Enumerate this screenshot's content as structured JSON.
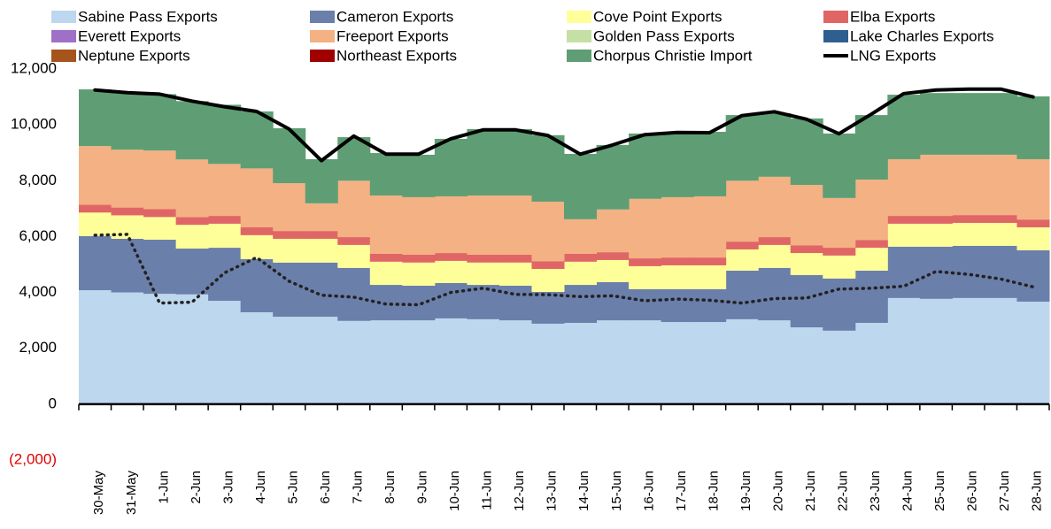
{
  "chart_data": {
    "type": "area",
    "stacked": true,
    "categories": [
      "30-May",
      "31-May",
      "1-Jun",
      "2-Jun",
      "3-Jun",
      "4-Jun",
      "5-Jun",
      "6-Jun",
      "7-Jun",
      "8-Jun",
      "9-Jun",
      "10-Jun",
      "11-Jun",
      "12-Jun",
      "13-Jun",
      "14-Jun",
      "15-Jun",
      "16-Jun",
      "17-Jun",
      "18-Jun",
      "19-Jun",
      "20-Jun",
      "21-Jun",
      "22-Jun",
      "23-Jun",
      "24-Jun",
      "25-Jun",
      "26-Jun",
      "27-Jun",
      "28-Jun"
    ],
    "ylim": [
      -2000,
      12000
    ],
    "yticks": [
      {
        "value": -2000,
        "label": "(2,000)"
      },
      0,
      {
        "value": 2000,
        "label": "2,000"
      },
      {
        "value": 4000,
        "label": "4,000"
      },
      {
        "value": 6000,
        "label": "6,000"
      },
      {
        "value": 8000,
        "label": "8,000"
      },
      {
        "value": 10000,
        "label": "10,000"
      },
      {
        "value": 12000,
        "label": "12,000"
      }
    ],
    "negative_label_color": "#e00000",
    "grid": false,
    "legend": "top",
    "series": [
      {
        "name": "Sabine Pass Exports",
        "color": "#bdd7ee",
        "values": [
          4080,
          4000,
          3950,
          3930,
          3700,
          3290,
          3130,
          3130,
          2980,
          3000,
          3000,
          3070,
          3040,
          3000,
          2880,
          2910,
          3000,
          3000,
          2940,
          2940,
          3040,
          3000,
          2750,
          2630,
          2910,
          3800,
          3770,
          3800,
          3800,
          3670
        ]
      },
      {
        "name": "Cameron Exports",
        "color": "#6b7fab",
        "values": [
          1940,
          1920,
          1940,
          1640,
          1900,
          1900,
          1940,
          1940,
          1900,
          1270,
          1240,
          1270,
          1230,
          1240,
          1140,
          1360,
          1370,
          1120,
          1180,
          1180,
          1740,
          1880,
          1870,
          1870,
          1870,
          1840,
          1870,
          1870,
          1870,
          1840
        ]
      },
      {
        "name": "Cove Point Exports",
        "color": "#ffff99",
        "values": [
          840,
          840,
          810,
          850,
          860,
          860,
          850,
          850,
          820,
          830,
          830,
          790,
          800,
          830,
          820,
          830,
          790,
          820,
          850,
          850,
          760,
          820,
          790,
          820,
          820,
          820,
          820,
          820,
          820,
          820
        ]
      },
      {
        "name": "Elba Exports",
        "color": "#e06666",
        "values": [
          280,
          280,
          280,
          280,
          280,
          280,
          280,
          280,
          280,
          280,
          280,
          280,
          280,
          280,
          280,
          280,
          280,
          280,
          280,
          280,
          280,
          280,
          280,
          280,
          280,
          280,
          280,
          280,
          280,
          280
        ]
      },
      {
        "name": "Everett Exports",
        "color": "#9e70c8",
        "values": [
          0,
          0,
          0,
          0,
          0,
          0,
          0,
          0,
          0,
          0,
          0,
          0,
          0,
          0,
          0,
          0,
          0,
          0,
          0,
          0,
          0,
          0,
          0,
          0,
          0,
          0,
          0,
          0,
          0,
          0
        ]
      },
      {
        "name": "Freeport Exports",
        "color": "#f4b183",
        "values": [
          2100,
          2070,
          2100,
          2060,
          1860,
          2110,
          1710,
          990,
          2020,
          2090,
          2060,
          2030,
          2120,
          2120,
          2130,
          1240,
          1530,
          2130,
          2160,
          2190,
          2180,
          2160,
          2160,
          1780,
          2160,
          2030,
          2190,
          2160,
          2160,
          2160
        ]
      },
      {
        "name": "Golden Pass Exports",
        "color": "#c5e0a5",
        "values": [
          0,
          0,
          0,
          0,
          0,
          0,
          0,
          0,
          0,
          0,
          0,
          0,
          0,
          0,
          0,
          0,
          0,
          0,
          0,
          0,
          0,
          0,
          0,
          0,
          0,
          0,
          0,
          0,
          0,
          0
        ]
      },
      {
        "name": "Lake Charles Exports",
        "color": "#2e5f8f",
        "values": [
          0,
          0,
          0,
          0,
          0,
          0,
          0,
          0,
          0,
          0,
          0,
          0,
          0,
          0,
          0,
          0,
          0,
          0,
          0,
          0,
          0,
          0,
          0,
          0,
          0,
          0,
          0,
          0,
          0,
          0
        ]
      },
      {
        "name": "Neptune Exports",
        "color": "#a5541b",
        "values": [
          0,
          0,
          0,
          0,
          0,
          0,
          0,
          0,
          0,
          0,
          0,
          0,
          0,
          0,
          0,
          0,
          0,
          0,
          0,
          0,
          0,
          0,
          0,
          0,
          0,
          0,
          0,
          0,
          0,
          0
        ]
      },
      {
        "name": "Northeast Exports",
        "color": "#a00000",
        "values": [
          0,
          0,
          0,
          0,
          0,
          0,
          0,
          0,
          0,
          0,
          0,
          0,
          0,
          0,
          0,
          0,
          0,
          0,
          0,
          0,
          0,
          0,
          0,
          0,
          0,
          0,
          0,
          0,
          0,
          0
        ]
      },
      {
        "name": "Chorpus Christie Import",
        "color": "#5f9e74",
        "values": [
          2030,
          2060,
          2020,
          2090,
          2120,
          2040,
          1970,
          1580,
          1560,
          1520,
          1520,
          2060,
          2380,
          2380,
          2380,
          2340,
          2310,
          2340,
          2340,
          2310,
          2350,
          2280,
          2380,
          2310,
          2310,
          2310,
          2210,
          2210,
          2210,
          2250
        ]
      },
      {
        "name": "LNG Exports",
        "type": "line",
        "color": "#000000",
        "values": [
          11250,
          11150,
          11100,
          10850,
          10650,
          10480,
          9850,
          8720,
          9600,
          8950,
          8950,
          9500,
          9820,
          9820,
          9620,
          8950,
          9280,
          9650,
          9730,
          9720,
          10330,
          10470,
          10200,
          9680,
          10380,
          11120,
          11250,
          11280,
          11280,
          11000
        ]
      },
      {
        "type": "line",
        "dash": true,
        "color": "#222222",
        "values": [
          6050,
          6080,
          3620,
          3650,
          4700,
          5250,
          4400,
          3900,
          3830,
          3580,
          3560,
          4000,
          4150,
          3930,
          3920,
          3850,
          3880,
          3700,
          3760,
          3720,
          3620,
          3780,
          3800,
          4120,
          4150,
          4220,
          4750,
          4650,
          4480,
          4200
        ]
      }
    ]
  }
}
